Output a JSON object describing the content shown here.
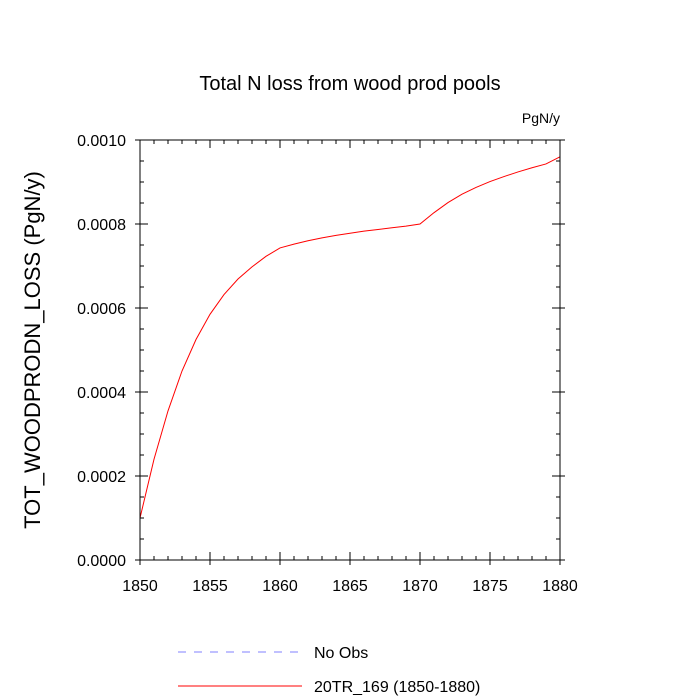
{
  "chart_data": {
    "type": "line",
    "title": "Total N loss from wood prod pools",
    "units_label": "PgN/y",
    "xlabel": "",
    "ylabel": "TOT_WOODPRODN_LOSS  (PgN/y)",
    "xlim": [
      1850,
      1880
    ],
    "ylim": [
      0.0,
      0.001
    ],
    "x_ticks": [
      1850,
      1855,
      1860,
      1865,
      1870,
      1875,
      1880
    ],
    "x_tick_labels": [
      "1850",
      "1855",
      "1860",
      "1865",
      "1870",
      "1875",
      "1880"
    ],
    "y_ticks": [
      0.0,
      0.0002,
      0.0004,
      0.0006,
      0.0008,
      0.001
    ],
    "y_tick_labels": [
      "0.0000",
      "0.0002",
      "0.0004",
      "0.0006",
      "0.0008",
      "0.0010"
    ],
    "grid": false,
    "legend_position": "bottom",
    "series": [
      {
        "name": "No Obs",
        "color": "#8080ff",
        "dash": "dashed",
        "x": [],
        "y": []
      },
      {
        "name": "20TR_169 (1850-1880)",
        "color": "#ff0000",
        "dash": "solid",
        "x": [
          1850,
          1851,
          1852,
          1853,
          1854,
          1855,
          1856,
          1857,
          1858,
          1859,
          1860,
          1861,
          1862,
          1863,
          1864,
          1865,
          1866,
          1867,
          1868,
          1869,
          1870,
          1871,
          1872,
          1873,
          1874,
          1875,
          1876,
          1877,
          1878,
          1879,
          1880
        ],
        "y": [
          0.0001,
          0.00024,
          0.000355,
          0.00045,
          0.000525,
          0.000585,
          0.000632,
          0.000669,
          0.000698,
          0.000723,
          0.000743,
          0.000752,
          0.00076,
          0.000767,
          0.000773,
          0.000778,
          0.000783,
          0.000787,
          0.000791,
          0.000795,
          0.0008,
          0.000827,
          0.000851,
          0.000871,
          0.000887,
          0.000901,
          0.000913,
          0.000924,
          0.000934,
          0.000943,
          0.00096
        ]
      }
    ]
  }
}
